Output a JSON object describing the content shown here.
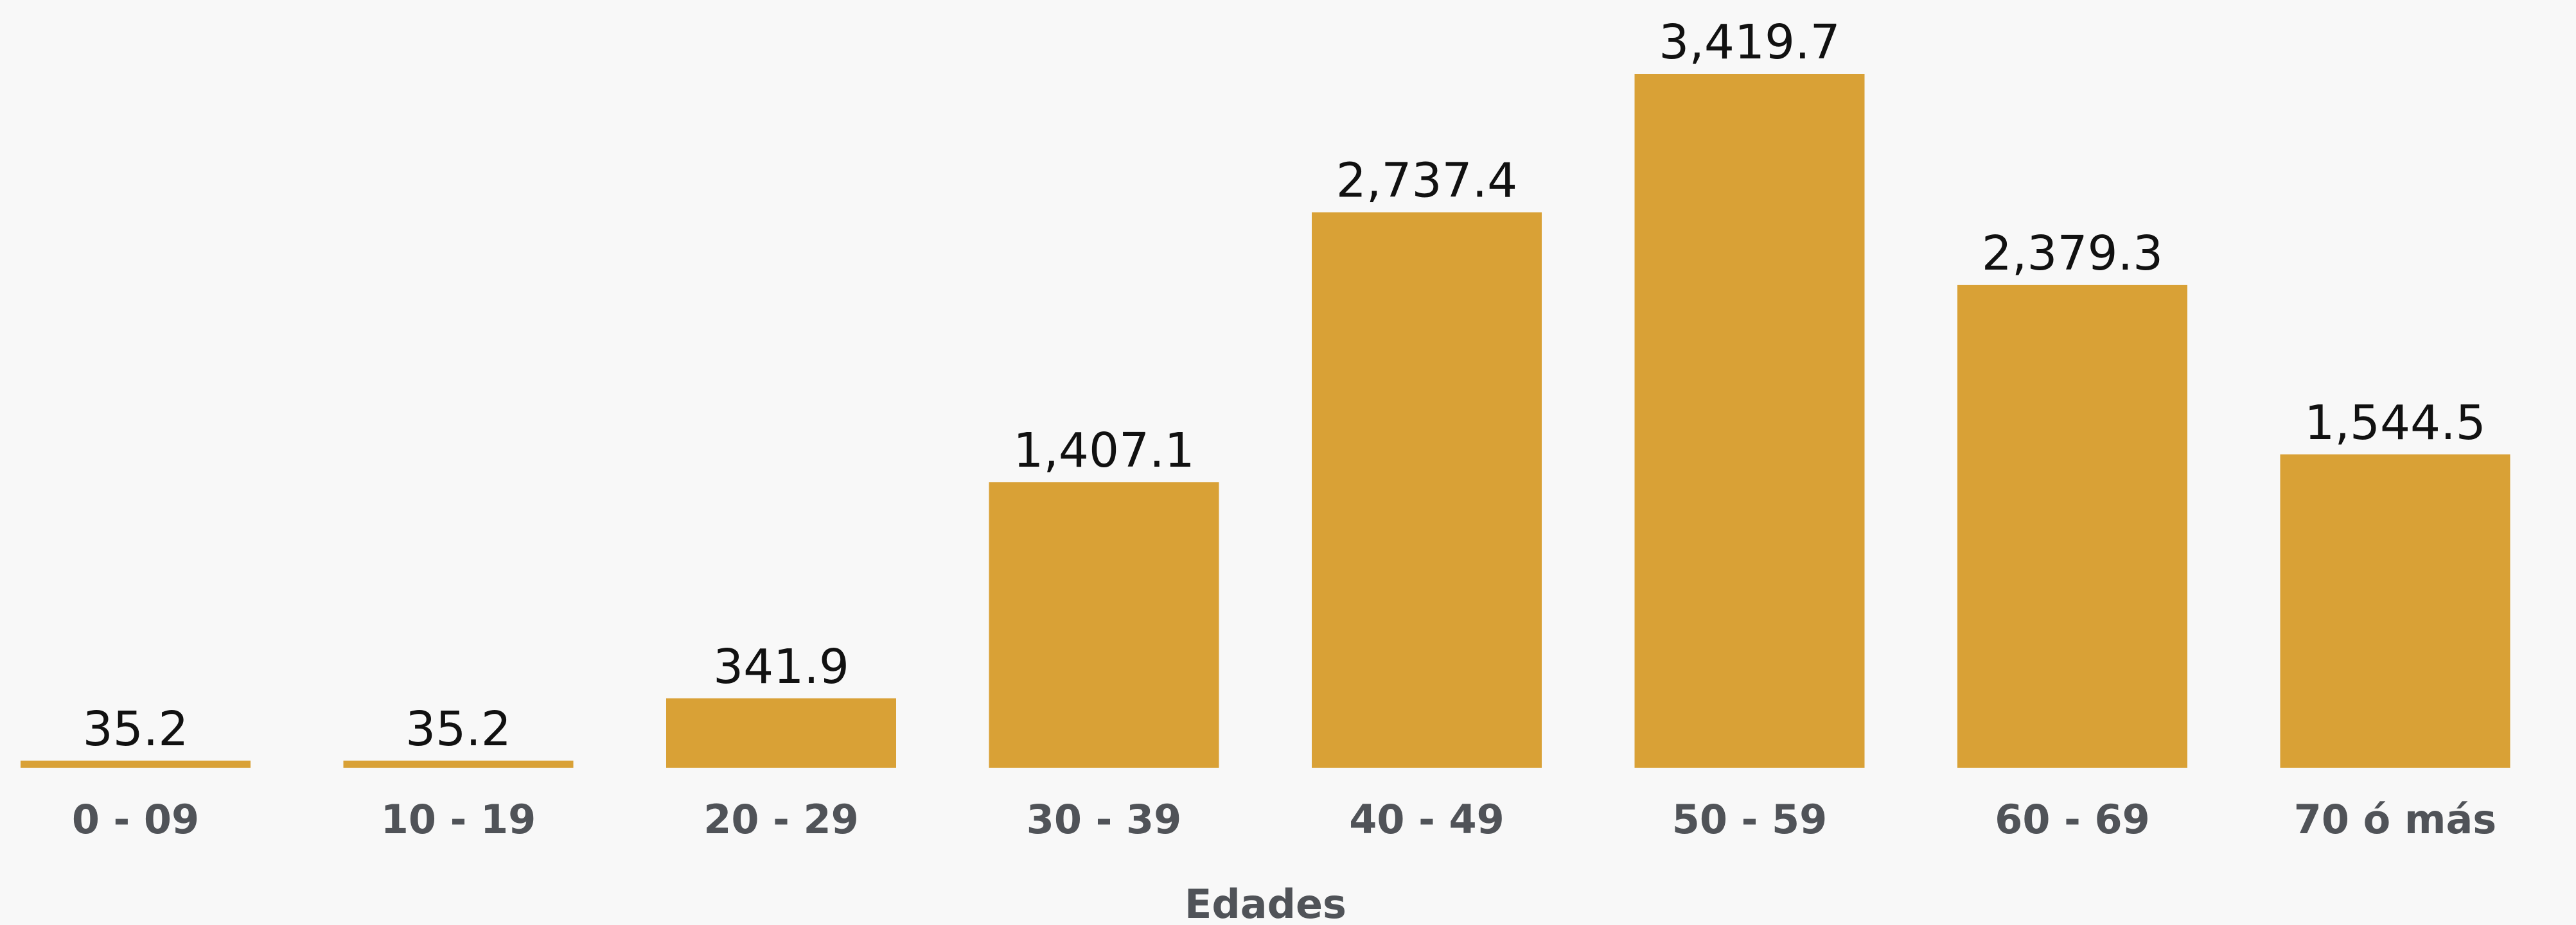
{
  "chart_data": {
    "type": "bar",
    "categories": [
      "0 - 09",
      "10 - 19",
      "20 - 29",
      "30 - 39",
      "40 - 49",
      "50 - 59",
      "60 - 69",
      "70 ó más"
    ],
    "values": [
      35.2,
      35.2,
      341.9,
      1407.1,
      2737.4,
      3419.7,
      2379.3,
      1544.5
    ],
    "value_labels": [
      "35.2",
      "35.2",
      "341.9",
      "1,407.1",
      "2,737.4",
      "3,419.7",
      "2,379.3",
      "1,544.5"
    ],
    "title": "",
    "xlabel": "Edades",
    "ylabel": "",
    "ylim": [
      0,
      3419.7
    ],
    "grid": false,
    "legend": "none",
    "colors": {
      "bar": "#d9a136",
      "value_text": "#111111",
      "axis_text": "#505358",
      "background": "#f8f8f8"
    }
  }
}
